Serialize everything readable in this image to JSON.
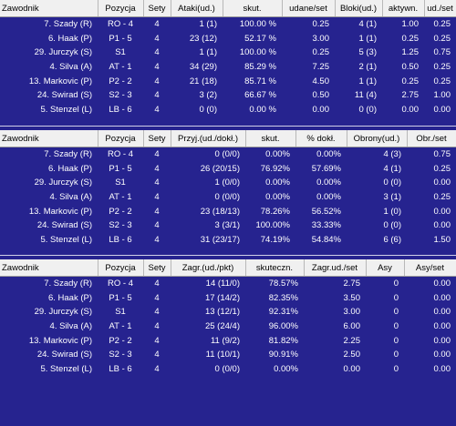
{
  "attack": {
    "headers": [
      "Zawodnik",
      "Pozycja",
      "Sety",
      "Ataki(ud.)",
      "skut.",
      "udane/set",
      "Bloki(ud.)",
      "aktywn.",
      "ud./set"
    ],
    "rows": [
      [
        "7. Szady (R)",
        "RO - 4",
        "4",
        "1 (1)",
        "100.00 %",
        "0.25",
        "4 (1)",
        "1.00",
        "0.25"
      ],
      [
        "6. Haak (P)",
        "P1 - 5",
        "4",
        "23 (12)",
        "52.17 %",
        "3.00",
        "1 (1)",
        "0.25",
        "0.25"
      ],
      [
        "29. Jurczyk (S)",
        "S1",
        "4",
        "1 (1)",
        "100.00 %",
        "0.25",
        "5 (3)",
        "1.25",
        "0.75"
      ],
      [
        "4. Silva (A)",
        "AT - 1",
        "4",
        "34 (29)",
        "85.29 %",
        "7.25",
        "2 (1)",
        "0.50",
        "0.25"
      ],
      [
        "13. Markovic (P)",
        "P2 - 2",
        "4",
        "21 (18)",
        "85.71 %",
        "4.50",
        "1 (1)",
        "0.25",
        "0.25"
      ],
      [
        "24. Swirad (S)",
        "S2 - 3",
        "4",
        "3 (2)",
        "66.67 %",
        "0.50",
        "11 (4)",
        "2.75",
        "1.00"
      ],
      [
        "5. Stenzel (L)",
        "LB - 6",
        "4",
        "0 (0)",
        "0.00 %",
        "0.00",
        "0 (0)",
        "0.00",
        "0.00"
      ]
    ]
  },
  "reception": {
    "headers": [
      "Zawodnik",
      "Pozycja",
      "Sety",
      "Przyj.(ud./dokł.)",
      "skut.",
      "% dokł.",
      "Obrony(ud.)",
      "Obr./set"
    ],
    "rows": [
      [
        "7. Szady (R)",
        "RO - 4",
        "4",
        "0 (0/0)",
        "0.00%",
        "0.00%",
        "4 (3)",
        "0.75"
      ],
      [
        "6. Haak (P)",
        "P1 - 5",
        "4",
        "26 (20/15)",
        "76.92%",
        "57.69%",
        "4 (1)",
        "0.25"
      ],
      [
        "29. Jurczyk (S)",
        "S1",
        "4",
        "1 (0/0)",
        "0.00%",
        "0.00%",
        "0 (0)",
        "0.00"
      ],
      [
        "4. Silva (A)",
        "AT - 1",
        "4",
        "0 (0/0)",
        "0.00%",
        "0.00%",
        "3 (1)",
        "0.25"
      ],
      [
        "13. Markovic (P)",
        "P2 - 2",
        "4",
        "23 (18/13)",
        "78.26%",
        "56.52%",
        "1 (0)",
        "0.00"
      ],
      [
        "24. Swirad (S)",
        "S2 - 3",
        "4",
        "3 (3/1)",
        "100.00%",
        "33.33%",
        "0 (0)",
        "0.00"
      ],
      [
        "5. Stenzel (L)",
        "LB - 6",
        "4",
        "31 (23/17)",
        "74.19%",
        "54.84%",
        "6 (6)",
        "1.50"
      ]
    ]
  },
  "serve": {
    "headers": [
      "Zawodnik",
      "Pozycja",
      "Sety",
      "Zagr.(ud./pkt)",
      "skuteczn.",
      "Zagr.ud./set",
      "Asy",
      "Asy/set"
    ],
    "rows": [
      [
        "7. Szady (R)",
        "RO - 4",
        "4",
        "14 (11/0)",
        "78.57%",
        "2.75",
        "0",
        "0.00"
      ],
      [
        "6. Haak (P)",
        "P1 - 5",
        "4",
        "17 (14/2)",
        "82.35%",
        "3.50",
        "0",
        "0.00"
      ],
      [
        "29. Jurczyk (S)",
        "S1",
        "4",
        "13 (12/1)",
        "92.31%",
        "3.00",
        "0",
        "0.00"
      ],
      [
        "4. Silva (A)",
        "AT - 1",
        "4",
        "25 (24/4)",
        "96.00%",
        "6.00",
        "0",
        "0.00"
      ],
      [
        "13. Markovic (P)",
        "P2 - 2",
        "4",
        "11 (9/2)",
        "81.82%",
        "2.25",
        "0",
        "0.00"
      ],
      [
        "24. Swirad (S)",
        "S2 - 3",
        "4",
        "11 (10/1)",
        "90.91%",
        "2.50",
        "0",
        "0.00"
      ],
      [
        "5. Stenzel (L)",
        "LB - 6",
        "4",
        "0 (0/0)",
        "0.00%",
        "0.00",
        "0",
        "0.00"
      ]
    ]
  }
}
